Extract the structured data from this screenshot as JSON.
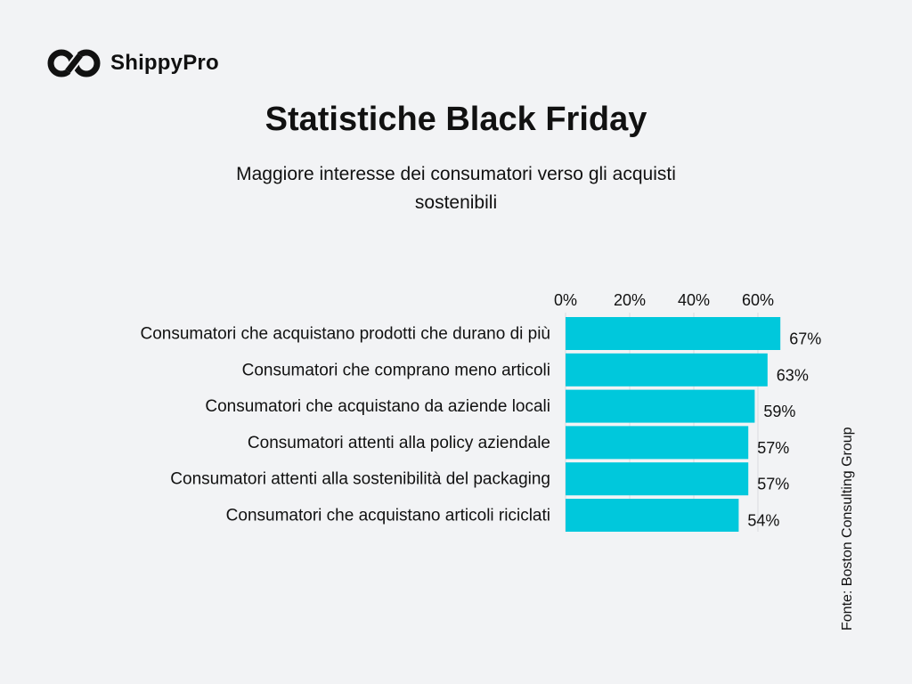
{
  "brand": {
    "name": "ShippyPro",
    "logo_icon": "infinity-icon"
  },
  "title": "Statistiche Black Friday",
  "subtitle": "Maggiore interesse dei consumatori verso gli acquisti sostenibili",
  "source": "Fonte: Boston Consulting Group",
  "colors": {
    "bar": "#00c8dc",
    "background": "#f2f3f5",
    "text": "#111111"
  },
  "chart_data": {
    "type": "bar",
    "orientation": "horizontal",
    "categories": [
      "Consumatori che acquistano prodotti che durano di più",
      "Consumatori che comprano meno articoli",
      "Consumatori che acquistano da aziende locali",
      "Consumatori attenti alla policy aziendale",
      "Consumatori attenti alla sostenibilità del packaging",
      "Consumatori che acquistano articoli riciclati"
    ],
    "values": [
      67,
      63,
      59,
      57,
      57,
      54
    ],
    "value_labels": [
      "67%",
      "63%",
      "59%",
      "57%",
      "57%",
      "54%"
    ],
    "x_ticks": [
      0,
      20,
      40,
      60
    ],
    "x_tick_labels": [
      "0%",
      "20%",
      "40%",
      "60%"
    ],
    "xlim": [
      0,
      67
    ],
    "x_axis_position": "top",
    "grid": true
  }
}
